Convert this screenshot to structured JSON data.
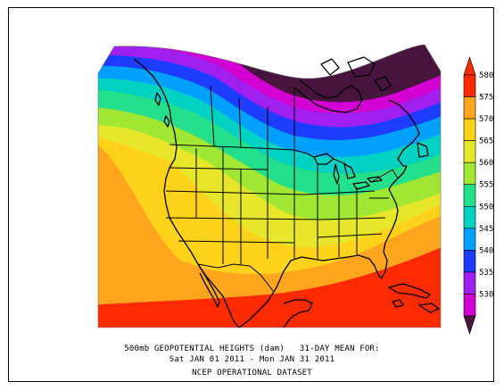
{
  "map": {
    "caption_line1": "500mb GEOPOTENTIAL HEIGHTS (dam)   31-DAY MEAN FOR:",
    "caption_line2": "Sat JAN 01 2011 - Mon JAN 31 2011",
    "caption_line3": "NCEP OPERATIONAL DATASET"
  },
  "legend": {
    "units": "dam",
    "levels": [
      {
        "label": "580",
        "color": "#ff2a00"
      },
      {
        "label": "575",
        "color": "#ffa51e"
      },
      {
        "label": "570",
        "color": "#fdd21b"
      },
      {
        "label": "565",
        "color": "#e6e62a"
      },
      {
        "label": "560",
        "color": "#a0e632"
      },
      {
        "label": "555",
        "color": "#24e08d"
      },
      {
        "label": "550",
        "color": "#00d1c0"
      },
      {
        "label": "545",
        "color": "#00a0ff"
      },
      {
        "label": "540",
        "color": "#1e3cff"
      },
      {
        "label": "535",
        "color": "#a020f0"
      },
      {
        "label": "530",
        "color": "#d200d2"
      }
    ],
    "low_color": "#46143c",
    "high_color": "#ff2a00"
  }
}
